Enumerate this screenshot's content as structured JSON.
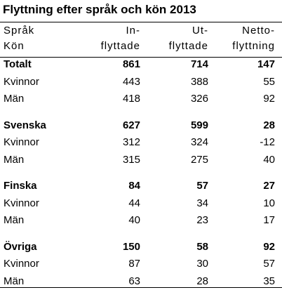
{
  "title": "Flyttning efter språk och kön 2013",
  "table": {
    "header": [
      [
        "Språk",
        "Kön"
      ],
      [
        "In-",
        "flyttade"
      ],
      [
        "Ut-",
        "flyttade"
      ],
      [
        "Netto-",
        "flyttning"
      ]
    ],
    "groups": [
      {
        "name": "Totalt",
        "total": [
          861,
          714,
          147
        ],
        "rows": [
          {
            "label": "Kvinnor",
            "values": [
              443,
              388,
              55
            ]
          },
          {
            "label": "Män",
            "values": [
              418,
              326,
              92
            ]
          }
        ]
      },
      {
        "name": "Svenska",
        "total": [
          627,
          599,
          28
        ],
        "rows": [
          {
            "label": "Kvinnor",
            "values": [
              312,
              324,
              -12
            ]
          },
          {
            "label": "Män",
            "values": [
              315,
              275,
              40
            ]
          }
        ]
      },
      {
        "name": "Finska",
        "total": [
          84,
          57,
          27
        ],
        "rows": [
          {
            "label": "Kvinnor",
            "values": [
              44,
              34,
              10
            ]
          },
          {
            "label": "Män",
            "values": [
              40,
              23,
              17
            ]
          }
        ]
      },
      {
        "name": "Övriga",
        "total": [
          150,
          58,
          92
        ],
        "rows": [
          {
            "label": "Kvinnor",
            "values": [
              87,
              30,
              57
            ]
          },
          {
            "label": "Män",
            "values": [
              63,
              28,
              35
            ]
          }
        ]
      }
    ]
  }
}
